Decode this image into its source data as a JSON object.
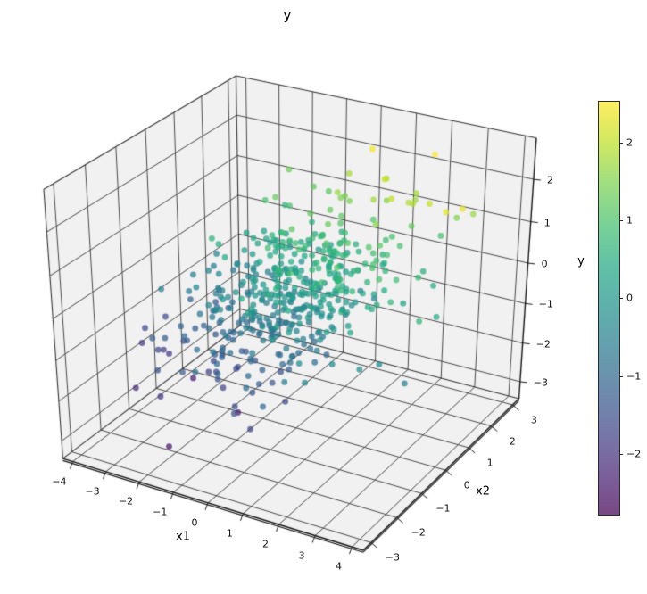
{
  "title": "y",
  "chart_data": {
    "type": "scatter",
    "projection": "3d",
    "title": "y",
    "x1_axis": {
      "label": "x1",
      "tick_values": [
        -4,
        -3,
        -2,
        -1,
        0,
        1,
        2,
        3,
        4
      ],
      "tick_labels": [
        "−4",
        "−3",
        "−2",
        "−1",
        "0",
        "1",
        "2",
        "3",
        "4"
      ],
      "lim": [
        -4.3,
        4.3
      ]
    },
    "x2_axis": {
      "label": "x2",
      "tick_values": [
        -3,
        -2,
        -1,
        0,
        1,
        2,
        3
      ],
      "tick_labels": [
        "−3",
        "−2",
        "−1",
        "0",
        "1",
        "2",
        "3"
      ],
      "lim": [
        -3.3,
        3.3
      ]
    },
    "z_axis": {
      "label": "y",
      "tick_values": [
        -3,
        -2,
        -1,
        0,
        1,
        2
      ],
      "tick_labels": [
        "−3",
        "−2",
        "−1",
        "0",
        "1",
        "2"
      ],
      "lim": [
        -3.45,
        2.95
      ]
    },
    "colorbar": {
      "tick_values": [
        2,
        1,
        0,
        -1,
        -2
      ],
      "tick_labels": [
        "2",
        "1",
        "0",
        "−1",
        "−2"
      ],
      "vmin": -2.77,
      "vmax": 2.54
    },
    "colormap": {
      "name": "viridis",
      "alpha": 0.72,
      "stops": [
        "#440154",
        "#482475",
        "#414487",
        "#355f8d",
        "#2a788e",
        "#21918c",
        "#22a884",
        "#44bf70",
        "#7ad151",
        "#bddf26",
        "#fde725"
      ]
    },
    "view": {
      "elev": 30,
      "azim": -60,
      "dist": 6.5
    },
    "scatter": {
      "n": 500,
      "seed": 12,
      "x1_sigma": 1.35,
      "x2_sigma": 1.05,
      "slope_x1": 0.33,
      "slope_x2": 0.46,
      "noise_sigma": 0.5,
      "marker_radius": 3.4
    },
    "style": {
      "pane_color": "#f1f1f2",
      "grid_color": "#4a4a4a",
      "edge_color": "#333333",
      "axis_line_color": "#151515",
      "tick_color": "#1a1a1a",
      "background": "#ffffff"
    }
  }
}
